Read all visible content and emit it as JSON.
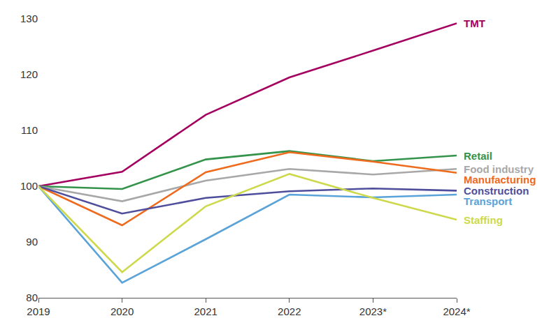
{
  "chart_data": {
    "type": "line",
    "categories": [
      "2019",
      "2020",
      "2021",
      "2022",
      "2023*",
      "2024*"
    ],
    "series": [
      {
        "name": "TMT",
        "color": "#a3005f",
        "values": [
          100,
          102.6,
          112.8,
          119.5,
          124.3,
          129.2
        ]
      },
      {
        "name": "Retail",
        "color": "#34934a",
        "values": [
          100,
          99.5,
          104.8,
          106.3,
          104.5,
          105.5
        ]
      },
      {
        "name": "Food industry",
        "color": "#a8a8a8",
        "values": [
          100,
          97.3,
          101.0,
          103.1,
          102.1,
          103.1
        ]
      },
      {
        "name": "Manufacturing",
        "color": "#ee6a1c",
        "values": [
          100,
          93.0,
          102.5,
          106.1,
          104.4,
          102.4
        ]
      },
      {
        "name": "Construction",
        "color": "#4e4e9c",
        "values": [
          100,
          95.1,
          97.9,
          99.1,
          99.6,
          99.2
        ]
      },
      {
        "name": "Transport",
        "color": "#5aa3d8",
        "values": [
          100,
          82.7,
          90.5,
          98.5,
          98.0,
          98.5
        ]
      },
      {
        "name": "Staffing",
        "color": "#cdd94a",
        "values": [
          100,
          84.6,
          96.4,
          102.2,
          97.9,
          94.0
        ]
      }
    ],
    "ylim": [
      80,
      130
    ],
    "yticks": [
      80,
      90,
      100,
      110,
      120,
      130
    ],
    "grid": false
  }
}
